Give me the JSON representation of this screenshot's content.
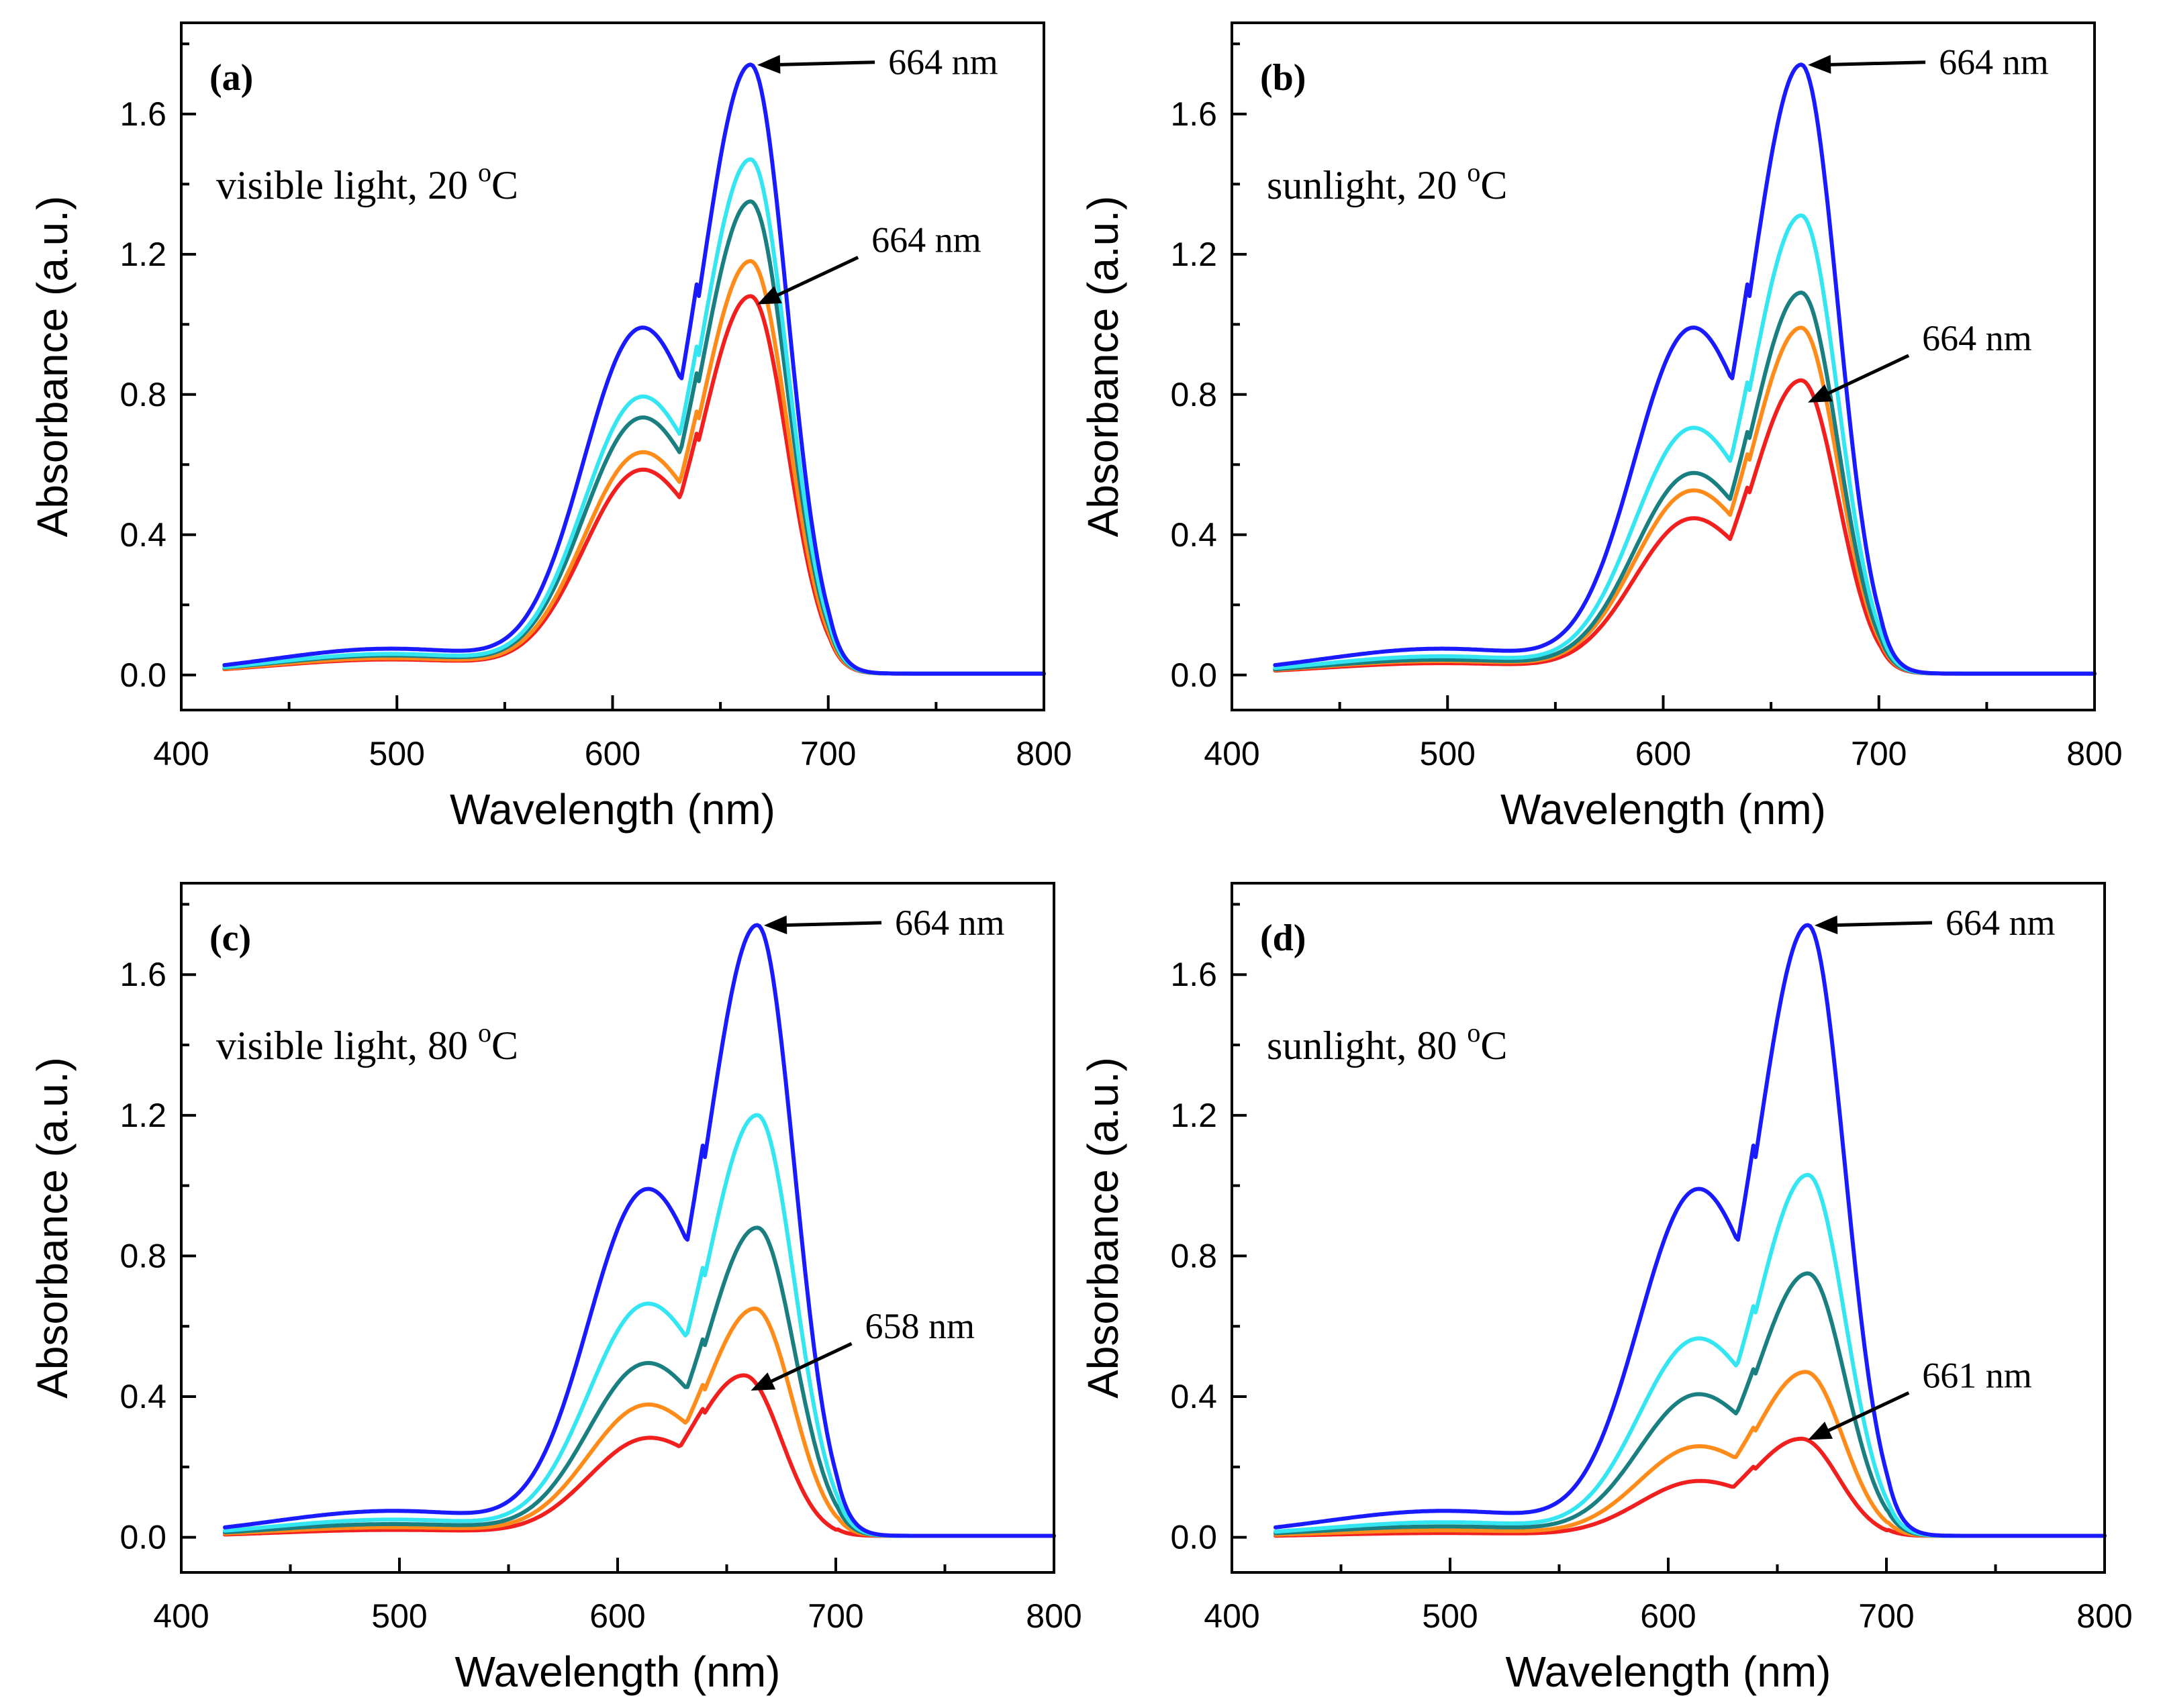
{
  "chart_data": [
    {
      "type": "line",
      "panel_label": "(a)",
      "condition": "visible light, 20",
      "condition_sup": "o",
      "condition_unit": "C",
      "xlabel": "Wavelength (nm)",
      "ylabel": "Absorbance (a.u.)",
      "xlim": [
        400,
        800
      ],
      "ylim": [
        -0.1,
        1.86
      ],
      "xticks": [
        "400",
        "500",
        "600",
        "700",
        "800"
      ],
      "yticks": [
        "0.0",
        "0.4",
        "0.8",
        "1.2",
        "1.6"
      ],
      "series": [
        {
          "name": "blue",
          "color": "#1a1aff",
          "shoulder": 1.0,
          "peak": 1.74,
          "peak_x": 664
        },
        {
          "name": "cyan",
          "color": "#33e6f2",
          "shoulder": 0.8,
          "peak": 1.47,
          "peak_x": 664
        },
        {
          "name": "teal",
          "color": "#1a7f80",
          "shoulder": 0.74,
          "peak": 1.35,
          "peak_x": 664
        },
        {
          "name": "orange",
          "color": "#ff8c1a",
          "shoulder": 0.64,
          "peak": 1.18,
          "peak_x": 664
        },
        {
          "name": "red",
          "color": "#f21f1f",
          "shoulder": 0.59,
          "peak": 1.08,
          "peak_x": 664
        }
      ],
      "annotations": [
        {
          "text": "664 nm",
          "x": 664,
          "y": 1.74
        },
        {
          "text": "664 nm",
          "x": 664,
          "y": 1.08
        }
      ]
    },
    {
      "type": "line",
      "panel_label": "(b)",
      "condition": "sunlight, 20",
      "condition_sup": "o",
      "condition_unit": "C",
      "xlabel": "Wavelength (nm)",
      "ylabel": "Absorbance (a.u.)",
      "xlim": [
        400,
        800
      ],
      "ylim": [
        -0.1,
        1.86
      ],
      "xticks": [
        "400",
        "500",
        "600",
        "700",
        "800"
      ],
      "yticks": [
        "0.0",
        "0.4",
        "0.8",
        "1.2",
        "1.6"
      ],
      "series": [
        {
          "name": "blue",
          "color": "#1a1aff",
          "shoulder": 1.0,
          "peak": 1.74,
          "peak_x": 664
        },
        {
          "name": "cyan",
          "color": "#33e6f2",
          "shoulder": 0.71,
          "peak": 1.31,
          "peak_x": 664
        },
        {
          "name": "teal",
          "color": "#1a7f80",
          "shoulder": 0.58,
          "peak": 1.09,
          "peak_x": 664
        },
        {
          "name": "orange",
          "color": "#ff8c1a",
          "shoulder": 0.53,
          "peak": 0.99,
          "peak_x": 664
        },
        {
          "name": "red",
          "color": "#f21f1f",
          "shoulder": 0.45,
          "peak": 0.84,
          "peak_x": 664
        }
      ],
      "annotations": [
        {
          "text": "664 nm",
          "x": 664,
          "y": 1.74
        },
        {
          "text": "664 nm",
          "x": 664,
          "y": 0.8
        }
      ]
    },
    {
      "type": "line",
      "panel_label": "(c)",
      "condition": "visible light, 80",
      "condition_sup": "o",
      "condition_unit": "C",
      "xlabel": "Wavelength (nm)",
      "ylabel": "Absorbance (a.u.)",
      "xlim": [
        400,
        800
      ],
      "ylim": [
        -0.1,
        1.86
      ],
      "xticks": [
        "400",
        "500",
        "600",
        "700",
        "800"
      ],
      "yticks": [
        "0.0",
        "0.4",
        "0.8",
        "1.2",
        "1.6"
      ],
      "series": [
        {
          "name": "blue",
          "color": "#1a1aff",
          "shoulder": 1.0,
          "peak": 1.74,
          "peak_x": 664
        },
        {
          "name": "cyan",
          "color": "#33e6f2",
          "shoulder": 0.67,
          "peak": 1.2,
          "peak_x": 664
        },
        {
          "name": "teal",
          "color": "#1a7f80",
          "shoulder": 0.5,
          "peak": 0.88,
          "peak_x": 664
        },
        {
          "name": "orange",
          "color": "#ff8c1a",
          "shoulder": 0.38,
          "peak": 0.65,
          "peak_x": 663
        },
        {
          "name": "red",
          "color": "#f21f1f",
          "shoulder": 0.28,
          "peak": 0.46,
          "peak_x": 658
        }
      ],
      "annotations": [
        {
          "text": "664 nm",
          "x": 664,
          "y": 1.74
        },
        {
          "text": "658 nm",
          "x": 658,
          "y": 0.44
        }
      ]
    },
    {
      "type": "line",
      "panel_label": "(d)",
      "condition": "sunlight, 80",
      "condition_sup": "o",
      "condition_unit": "C",
      "xlabel": "Wavelength (nm)",
      "ylabel": "Absorbance (a.u.)",
      "xlim": [
        400,
        800
      ],
      "ylim": [
        -0.1,
        1.86
      ],
      "xticks": [
        "400",
        "500",
        "600",
        "700",
        "800"
      ],
      "yticks": [
        "0.0",
        "0.4",
        "0.8",
        "1.2",
        "1.6"
      ],
      "series": [
        {
          "name": "blue",
          "color": "#1a1aff",
          "shoulder": 1.0,
          "peak": 1.74,
          "peak_x": 664
        },
        {
          "name": "cyan",
          "color": "#33e6f2",
          "shoulder": 0.57,
          "peak": 1.03,
          "peak_x": 664
        },
        {
          "name": "teal",
          "color": "#1a7f80",
          "shoulder": 0.41,
          "peak": 0.75,
          "peak_x": 664
        },
        {
          "name": "orange",
          "color": "#ff8c1a",
          "shoulder": 0.26,
          "peak": 0.47,
          "peak_x": 663
        },
        {
          "name": "red",
          "color": "#f21f1f",
          "shoulder": 0.16,
          "peak": 0.28,
          "peak_x": 661
        }
      ],
      "annotations": [
        {
          "text": "664 nm",
          "x": 664,
          "y": 1.74
        },
        {
          "text": "661 nm",
          "x": 661,
          "y": 0.3
        }
      ]
    }
  ]
}
